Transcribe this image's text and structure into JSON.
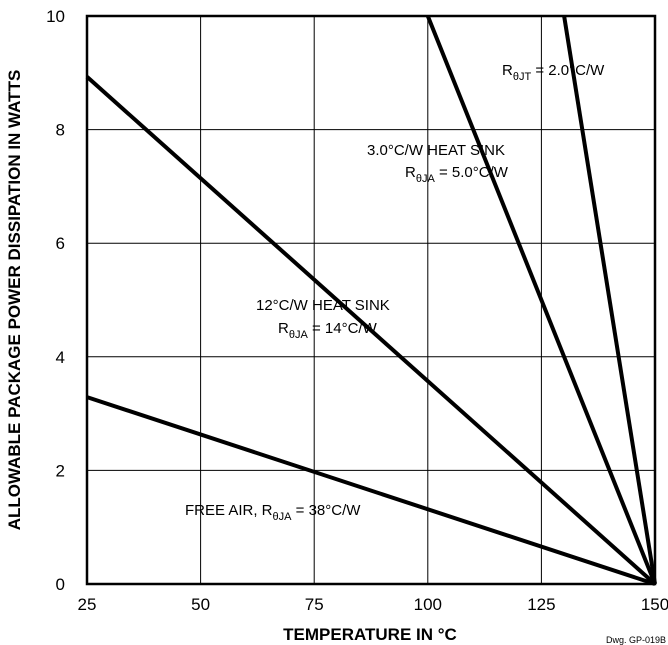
{
  "chart_data": {
    "type": "line",
    "title": "",
    "xlabel": "TEMPERATURE IN °C",
    "ylabel": "ALLOWABLE PACKAGE POWER DISSIPATION IN WATTS",
    "xlim": [
      25,
      150
    ],
    "ylim": [
      0,
      10
    ],
    "grid": true,
    "x_ticks": [
      "25",
      "50",
      "75",
      "100",
      "125",
      "150"
    ],
    "y_ticks": [
      "0",
      "2",
      "4",
      "6",
      "8",
      "10"
    ],
    "series": [
      {
        "x": [
          25,
          150
        ],
        "y": [
          3.29,
          0
        ]
      },
      {
        "x": [
          25,
          150
        ],
        "y": [
          8.93,
          0
        ]
      },
      {
        "x": [
          100,
          150
        ],
        "y": [
          10,
          0
        ]
      },
      {
        "x": [
          130,
          150
        ],
        "y": [
          10,
          0
        ]
      }
    ],
    "annotations": [
      {
        "id": "free_air",
        "text": "FREE AIR, R",
        "sub": "θJA",
        "suffix": " = 38°C/W"
      },
      {
        "id": "hs12_l1",
        "text": "12°C/W HEAT SINK"
      },
      {
        "id": "hs12_l2",
        "text": "R",
        "sub": "θJA",
        "suffix": " = 14°C/W"
      },
      {
        "id": "hs3_l1",
        "text": "3.0°C/W HEAT SINK"
      },
      {
        "id": "hs3_l2",
        "text": "R",
        "sub": "θJA",
        "suffix": " = 5.0°C/W"
      },
      {
        "id": "jt",
        "text": "R",
        "sub": "θJT",
        "suffix": " = 2.0°C/W"
      }
    ],
    "drawing_number": "Dwg. GP-019B"
  }
}
